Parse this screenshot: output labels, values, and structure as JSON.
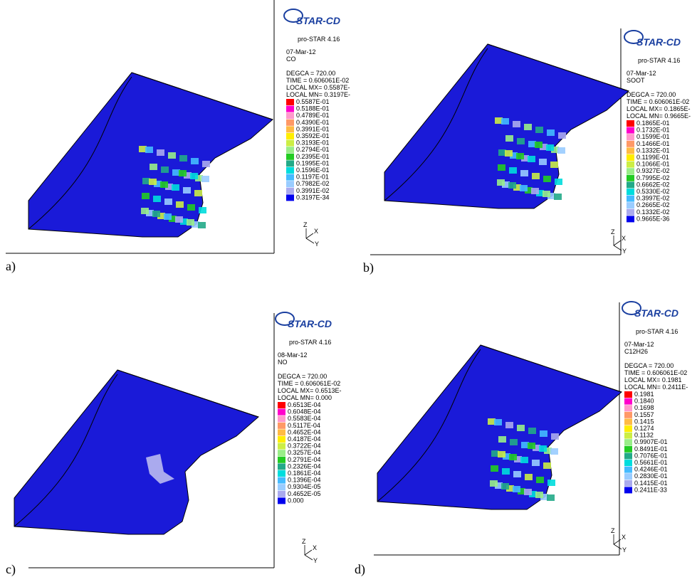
{
  "panels": [
    {
      "label": "a)",
      "logo": "STAR-CD",
      "version": "pro-STAR 4.16",
      "date": "07-Mar-12",
      "variable": "CO",
      "degca": "DEGCA =  720.00",
      "time": "TIME = 0.606061E-02",
      "local_mx": "LOCAL MX= 0.5587E-",
      "local_mn": "LOCAL MN= 0.3197E-",
      "legend": [
        "0.5587E-01",
        "0.5188E-01",
        "0.4789E-01",
        "0.4390E-01",
        "0.3991E-01",
        "0.3592E-01",
        "0.3193E-01",
        "0.2794E-01",
        "0.2395E-01",
        "0.1995E-01",
        "0.1596E-01",
        "0.1197E-01",
        "0.7982E-02",
        "0.3991E-02",
        "0.3197E-34"
      ],
      "axes": [
        "Z",
        "X",
        "Y"
      ]
    },
    {
      "label": "b)",
      "logo": "STAR-CD",
      "version": "pro-STAR 4.16",
      "date": "07-Mar-12",
      "variable": "SOOT",
      "degca": "DEGCA =  720.00",
      "time": "TIME = 0.606061E-02",
      "local_mx": "LOCAL MX= 0.1865E-",
      "local_mn": "LOCAL MN= 0.9665E-",
      "legend": [
        "0.1865E-01",
        "0.1732E-01",
        "0.1599E-01",
        "0.1466E-01",
        "0.1332E-01",
        "0.1199E-01",
        "0.1066E-01",
        "0.9327E-02",
        "0.7995E-02",
        "0.6662E-02",
        "0.5330E-02",
        "0.3997E-02",
        "0.2665E-02",
        "0.1332E-02",
        "0.9665E-36"
      ],
      "axes": [
        "Z",
        "X",
        "Y"
      ]
    },
    {
      "label": "c)",
      "logo": "STAR-CD",
      "version": "pro-STAR 4.16",
      "date": "08-Mar-12",
      "variable": "NO",
      "degca": "DEGCA =  720.00",
      "time": "TIME = 0.606061E-02",
      "local_mx": "LOCAL MX= 0.6513E-",
      "local_mn": "LOCAL MN= 0.000",
      "legend": [
        "0.6513E-04",
        "0.6048E-04",
        "0.5583E-04",
        "0.5117E-04",
        "0.4652E-04",
        "0.4187E-04",
        "0.3722E-04",
        "0.3257E-04",
        "0.2791E-04",
        "0.2326E-04",
        "0.1861E-04",
        "0.1396E-04",
        "0.9304E-05",
        "0.4652E-05",
        "0.000"
      ],
      "axes": [
        "Z",
        "X",
        "Y"
      ]
    },
    {
      "label": "d)",
      "logo": "STAR-CD",
      "version": "pro-STAR 4.16",
      "date": "07-Mar-12",
      "variable": "C12H26",
      "degca": "DEGCA =  720.00",
      "time": "TIME = 0.606061E-02",
      "local_mx": "LOCAL MX= 0.1981",
      "local_mn": "LOCAL MN= 0.2411E-",
      "legend": [
        "0.1981",
        "0.1840",
        "0.1698",
        "0.1557",
        "0.1415",
        "0.1274",
        "0.1132",
        "0.9907E-01",
        "0.8491E-01",
        "0.7076E-01",
        "0.5661E-01",
        "0.4246E-01",
        "0.2830E-01",
        "0.1415E-01",
        "0.2411E-33"
      ],
      "axes": [
        "Z",
        "X",
        "Y"
      ]
    }
  ]
}
